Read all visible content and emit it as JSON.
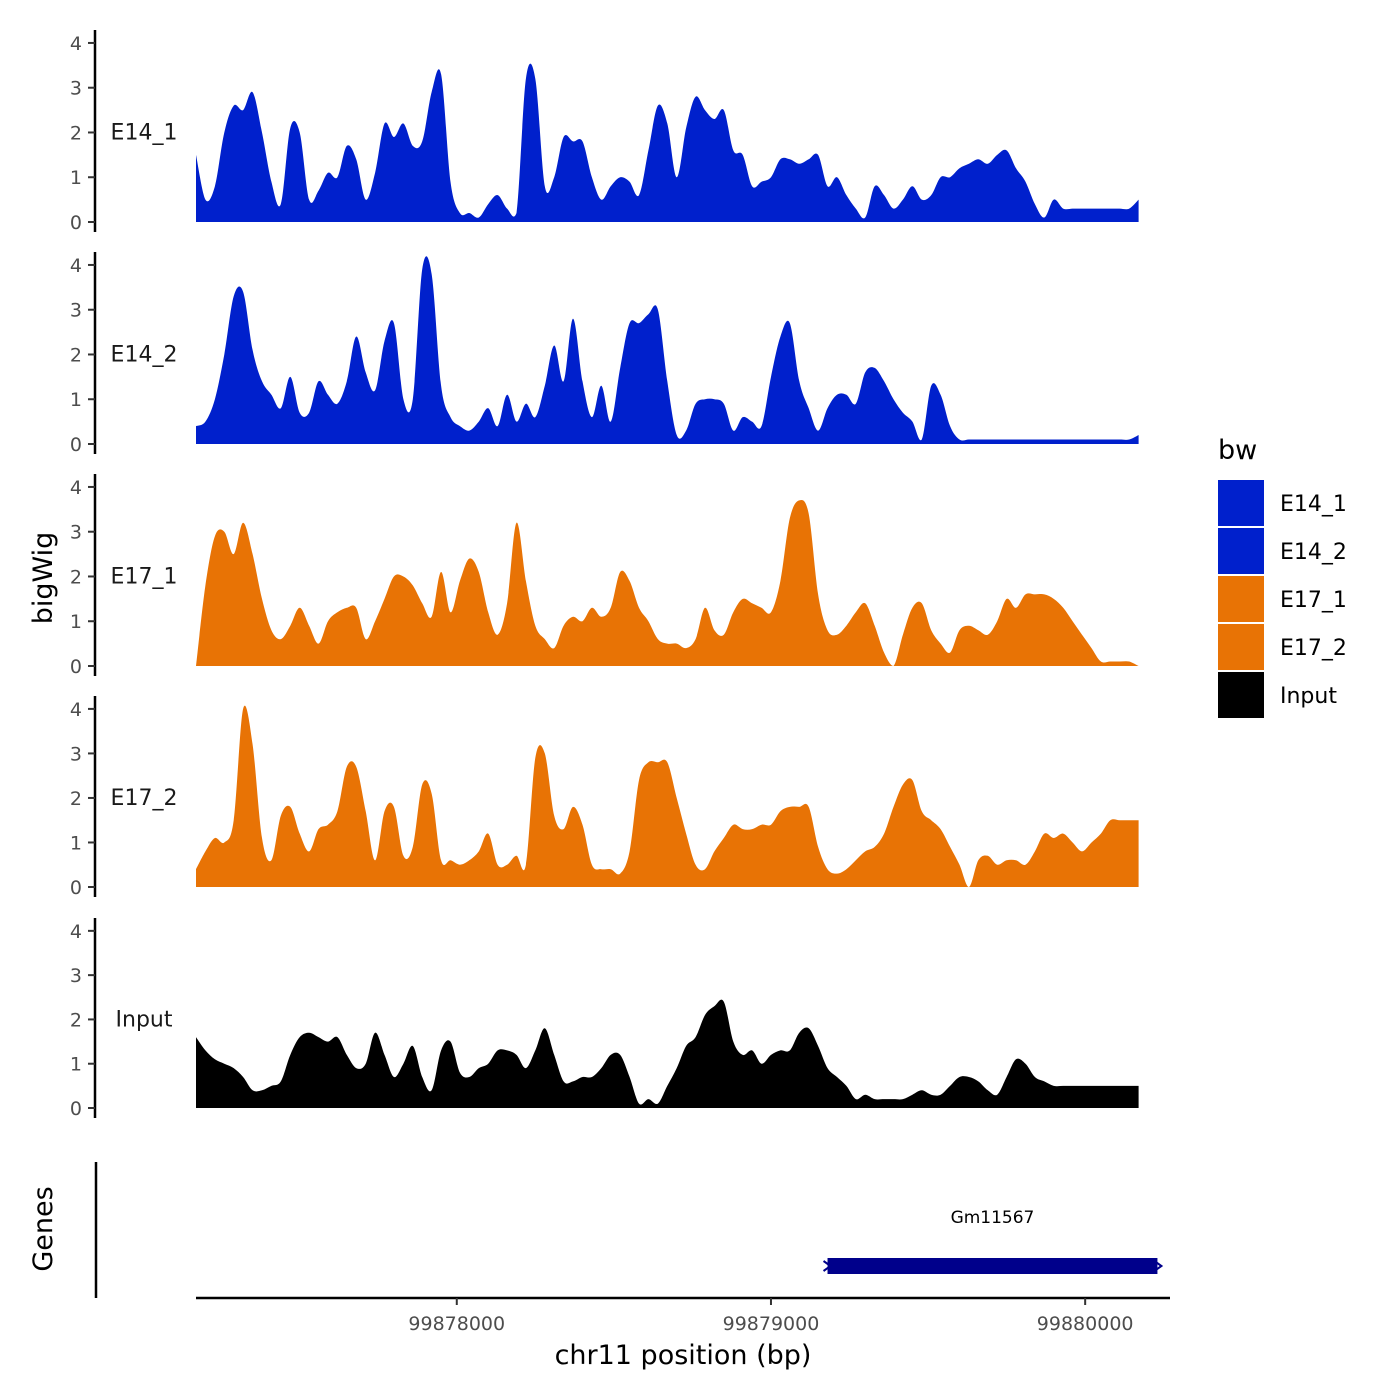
{
  "chart_data": {
    "type": "area",
    "ylabel": "bigWig",
    "xlabel": "chr11 position (bp)",
    "ylim": [
      0,
      4.2
    ],
    "xlim": [
      99877170,
      99880270
    ],
    "y_ticks": [
      0,
      1,
      2,
      3,
      4
    ],
    "x_ticks": [
      99878000,
      99879000,
      99880000
    ],
    "x_tick_labels": [
      "99878000",
      "99879000",
      "99880000"
    ],
    "legend": {
      "title": "bw",
      "position": "right",
      "entries": [
        {
          "label": "E14_1",
          "color": "#0020cc"
        },
        {
          "label": "E14_2",
          "color": "#0020cc"
        },
        {
          "label": "E17_1",
          "color": "#e87305"
        },
        {
          "label": "E17_2",
          "color": "#e87305"
        },
        {
          "label": "Input",
          "color": "#000000"
        }
      ]
    },
    "x": [
      99877170,
      99877200,
      99877230,
      99877260,
      99877290,
      99877320,
      99877350,
      99877380,
      99877410,
      99877440,
      99877470,
      99877500,
      99877530,
      99877560,
      99877590,
      99877620,
      99877650,
      99877680,
      99877710,
      99877740,
      99877770,
      99877800,
      99877830,
      99877860,
      99877890,
      99877920,
      99877950,
      99877980,
      99878010,
      99878040,
      99878070,
      99878100,
      99878130,
      99878160,
      99878190,
      99878220,
      99878250,
      99878280,
      99878310,
      99878340,
      99878370,
      99878400,
      99878430,
      99878460,
      99878490,
      99878520,
      99878550,
      99878580,
      99878610,
      99878640,
      99878670,
      99878700,
      99878730,
      99878760,
      99878790,
      99878820,
      99878850,
      99878880,
      99878910,
      99878940,
      99878970,
      99879000,
      99879030,
      99879060,
      99879090,
      99879120,
      99879150,
      99879180,
      99879210,
      99879240,
      99879270,
      99879300,
      99879330,
      99879360,
      99879390,
      99879420,
      99879450,
      99879480,
      99879510,
      99879540,
      99879570,
      99879600,
      99879630,
      99879660,
      99879690,
      99879720,
      99879750,
      99879780,
      99879810,
      99879840,
      99879870,
      99879900,
      99879930,
      99879960,
      99879990,
      99880020,
      99880050,
      99880080,
      99880110,
      99880140,
      99880170
    ],
    "series": [
      {
        "name": "E14_1",
        "color": "#0020cc",
        "values": [
          1.5,
          0.5,
          0.8,
          2.0,
          2.6,
          2.5,
          2.9,
          2.0,
          0.9,
          0.4,
          2.1,
          2.0,
          0.5,
          0.7,
          1.1,
          1.0,
          1.7,
          1.4,
          0.5,
          1.1,
          2.2,
          1.9,
          2.2,
          1.7,
          1.8,
          2.9,
          3.3,
          0.9,
          0.2,
          0.2,
          0.1,
          0.4,
          0.6,
          0.3,
          0.2,
          3.2,
          3.2,
          0.8,
          1.0,
          1.9,
          1.8,
          1.8,
          1.0,
          0.5,
          0.8,
          1.0,
          0.9,
          0.6,
          1.6,
          2.6,
          2.2,
          1.0,
          2.1,
          2.8,
          2.5,
          2.3,
          2.5,
          1.6,
          1.5,
          0.8,
          0.9,
          1.0,
          1.4,
          1.4,
          1.3,
          1.4,
          1.5,
          0.8,
          1.0,
          0.6,
          0.3,
          0.1,
          0.8,
          0.6,
          0.3,
          0.5,
          0.8,
          0.5,
          0.6,
          1.0,
          1.0,
          1.2,
          1.3,
          1.4,
          1.3,
          1.5,
          1.6,
          1.2,
          0.9,
          0.4,
          0.1,
          0.5,
          0.3,
          0.3,
          0.3,
          0.3,
          0.3,
          0.3,
          0.3,
          0.3,
          0.5
        ]
      },
      {
        "name": "E14_2",
        "color": "#0020cc",
        "values": [
          0.4,
          0.5,
          1.0,
          2.0,
          3.3,
          3.4,
          2.1,
          1.4,
          1.1,
          0.8,
          1.5,
          0.7,
          0.7,
          1.4,
          1.1,
          0.9,
          1.4,
          2.4,
          1.6,
          1.2,
          2.3,
          2.7,
          1.0,
          1.0,
          3.9,
          3.8,
          1.3,
          0.6,
          0.4,
          0.3,
          0.5,
          0.8,
          0.4,
          1.1,
          0.5,
          0.9,
          0.6,
          1.3,
          2.2,
          1.4,
          2.8,
          1.4,
          0.6,
          1.3,
          0.5,
          1.7,
          2.7,
          2.7,
          2.9,
          3.0,
          1.4,
          0.2,
          0.3,
          0.9,
          1.0,
          1.0,
          0.9,
          0.3,
          0.6,
          0.5,
          0.4,
          1.5,
          2.4,
          2.7,
          1.4,
          0.8,
          0.3,
          0.8,
          1.1,
          1.1,
          0.9,
          1.6,
          1.7,
          1.4,
          1.0,
          0.7,
          0.5,
          0.1,
          1.3,
          1.1,
          0.4,
          0.1,
          0.1,
          0.1,
          0.1,
          0.1,
          0.1,
          0.1,
          0.1,
          0.1,
          0.1,
          0.1,
          0.1,
          0.1,
          0.1,
          0.1,
          0.1,
          0.1,
          0.1,
          0.1,
          0.2
        ]
      },
      {
        "name": "E17_1",
        "color": "#e87305",
        "values": [
          0.0,
          1.8,
          2.9,
          3.0,
          2.5,
          3.2,
          2.5,
          1.5,
          0.8,
          0.6,
          0.9,
          1.3,
          0.9,
          0.5,
          1.0,
          1.2,
          1.3,
          1.3,
          0.6,
          1.0,
          1.5,
          2.0,
          2.0,
          1.8,
          1.4,
          1.1,
          2.1,
          1.2,
          1.9,
          2.4,
          2.1,
          1.2,
          0.7,
          1.4,
          3.2,
          1.9,
          0.9,
          0.6,
          0.4,
          0.9,
          1.1,
          1.0,
          1.3,
          1.1,
          1.3,
          2.1,
          1.9,
          1.3,
          1.0,
          0.6,
          0.5,
          0.5,
          0.4,
          0.6,
          1.3,
          0.8,
          0.7,
          1.2,
          1.5,
          1.4,
          1.3,
          1.2,
          1.9,
          3.3,
          3.7,
          3.4,
          1.6,
          0.8,
          0.7,
          0.9,
          1.2,
          1.4,
          0.9,
          0.3,
          0.0,
          0.7,
          1.3,
          1.4,
          0.8,
          0.5,
          0.3,
          0.8,
          0.9,
          0.8,
          0.7,
          1.0,
          1.5,
          1.3,
          1.6,
          1.6,
          1.6,
          1.5,
          1.3,
          1.0,
          0.7,
          0.4,
          0.1,
          0.1,
          0.1,
          0.1,
          0.0
        ]
      },
      {
        "name": "E17_2",
        "color": "#e87305",
        "values": [
          0.4,
          0.8,
          1.1,
          1.0,
          1.5,
          4.0,
          3.2,
          1.1,
          0.6,
          1.6,
          1.8,
          1.2,
          0.8,
          1.3,
          1.4,
          1.7,
          2.7,
          2.7,
          1.7,
          0.6,
          1.7,
          1.8,
          0.7,
          0.9,
          2.3,
          2.1,
          0.6,
          0.6,
          0.5,
          0.6,
          0.8,
          1.2,
          0.5,
          0.5,
          0.7,
          0.5,
          2.9,
          3.0,
          1.6,
          1.3,
          1.8,
          1.4,
          0.5,
          0.4,
          0.4,
          0.3,
          0.8,
          2.4,
          2.8,
          2.8,
          2.8,
          2.0,
          1.2,
          0.5,
          0.4,
          0.8,
          1.1,
          1.4,
          1.3,
          1.3,
          1.4,
          1.4,
          1.7,
          1.8,
          1.8,
          1.8,
          0.9,
          0.4,
          0.3,
          0.4,
          0.6,
          0.8,
          0.9,
          1.2,
          1.8,
          2.3,
          2.4,
          1.7,
          1.5,
          1.3,
          0.9,
          0.5,
          0.0,
          0.6,
          0.7,
          0.5,
          0.6,
          0.6,
          0.5,
          0.8,
          1.2,
          1.1,
          1.2,
          1.0,
          0.8,
          1.0,
          1.2,
          1.5,
          1.5,
          1.5,
          1.5
        ]
      },
      {
        "name": "Input",
        "color": "#000000",
        "values": [
          1.6,
          1.3,
          1.1,
          1.0,
          0.9,
          0.7,
          0.4,
          0.4,
          0.5,
          0.6,
          1.2,
          1.6,
          1.7,
          1.6,
          1.5,
          1.6,
          1.2,
          0.9,
          1.0,
          1.7,
          1.2,
          0.7,
          1.0,
          1.4,
          0.7,
          0.4,
          1.3,
          1.5,
          0.8,
          0.7,
          0.9,
          1.0,
          1.3,
          1.3,
          1.2,
          0.9,
          1.3,
          1.8,
          1.2,
          0.6,
          0.6,
          0.7,
          0.7,
          0.9,
          1.2,
          1.2,
          0.7,
          0.1,
          0.2,
          0.1,
          0.5,
          0.9,
          1.4,
          1.6,
          2.1,
          2.3,
          2.4,
          1.5,
          1.2,
          1.3,
          1.0,
          1.2,
          1.3,
          1.3,
          1.7,
          1.8,
          1.4,
          0.9,
          0.7,
          0.5,
          0.2,
          0.3,
          0.2,
          0.2,
          0.2,
          0.2,
          0.3,
          0.4,
          0.3,
          0.3,
          0.5,
          0.7,
          0.7,
          0.6,
          0.4,
          0.3,
          0.7,
          1.1,
          1.0,
          0.7,
          0.6,
          0.5,
          0.5,
          0.5,
          0.5,
          0.5,
          0.5,
          0.5,
          0.5,
          0.5,
          0.5
        ]
      }
    ],
    "genes": {
      "track_label": "Genes",
      "items": [
        {
          "name": "Gm11567",
          "start": 99879180,
          "end": 99880230,
          "strand": "+",
          "color": "#00008b"
        }
      ]
    }
  }
}
